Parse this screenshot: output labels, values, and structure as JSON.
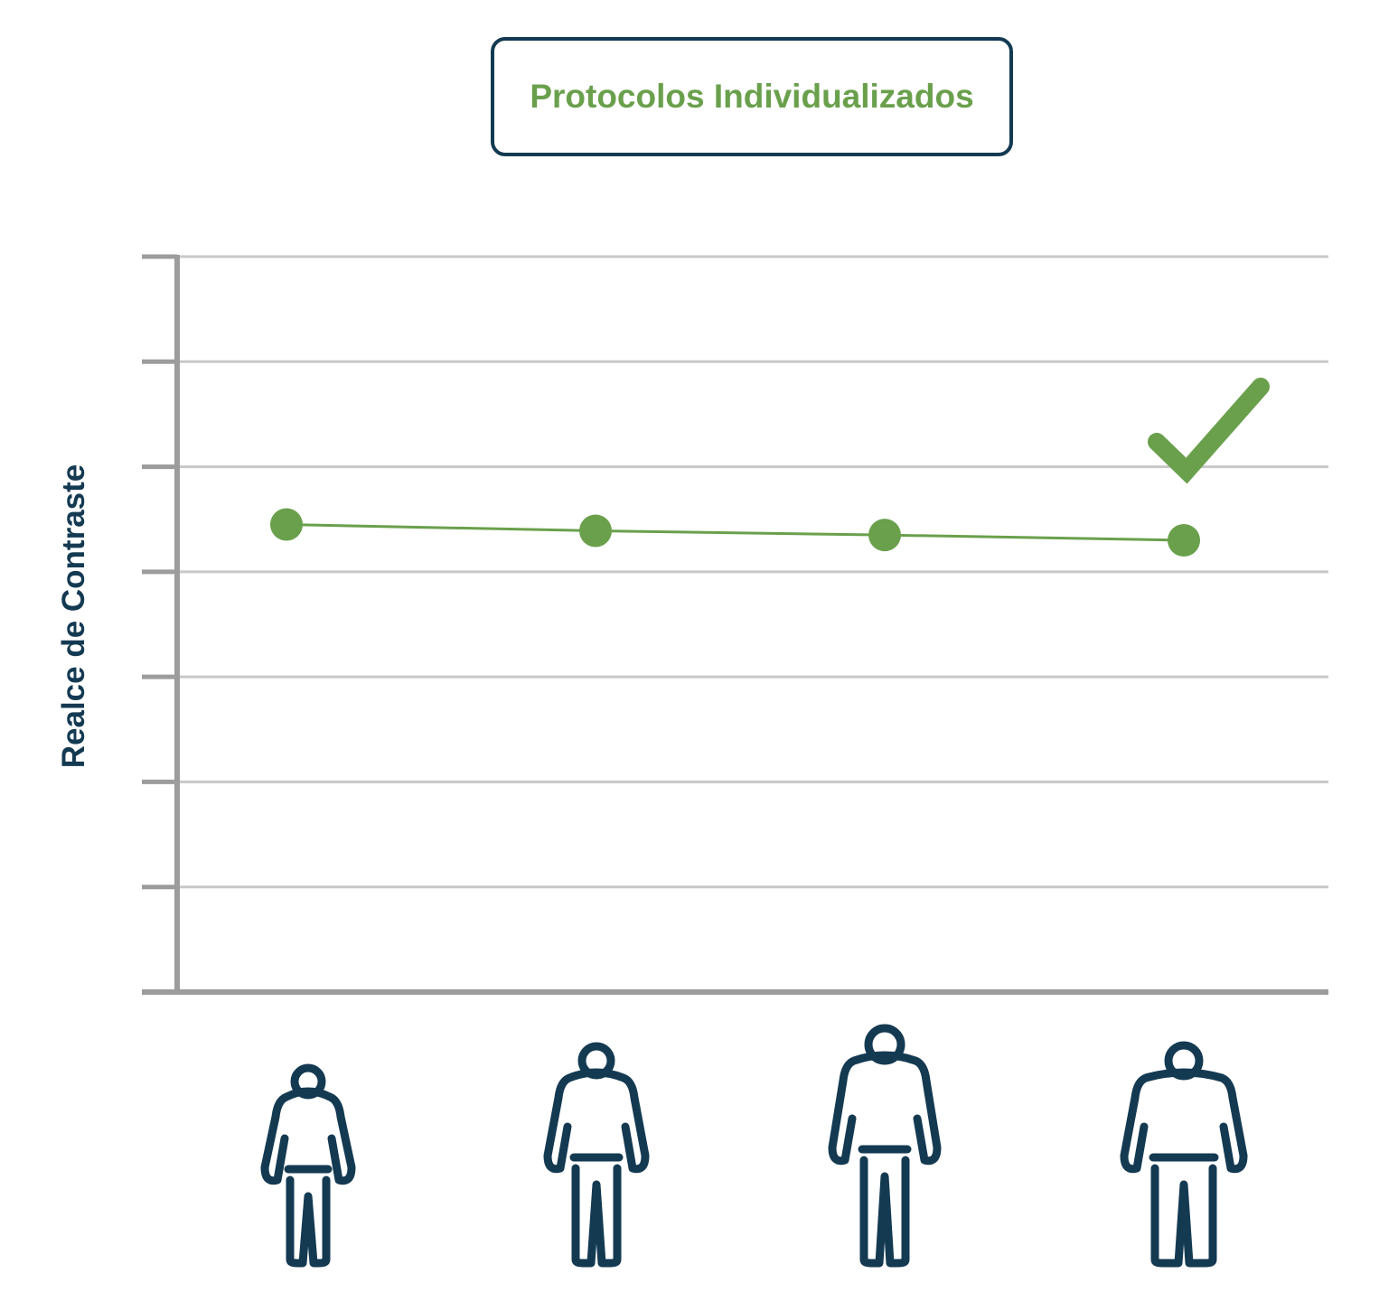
{
  "colors": {
    "accent": "#6aa04c",
    "dark": "#143a52",
    "grid": "#c8c8c8",
    "axis": "#9c9c9c"
  },
  "chart_data": {
    "type": "line",
    "legend": "Protocolos Individualizados",
    "legend_position": "top-center",
    "ylabel": "Realce de Contraste",
    "xlabel": "",
    "grid": true,
    "ylim": [
      0,
      7
    ],
    "categories": [
      "patient-small",
      "patient-medium",
      "patient-tall",
      "patient-large"
    ],
    "x_icons": [
      "person-icon",
      "person-icon",
      "person-icon",
      "person-icon"
    ],
    "series": [
      {
        "name": "Protocolos Individualizados",
        "values": [
          4.45,
          4.39,
          4.35,
          4.3
        ]
      }
    ],
    "annotation": {
      "icon": "checkmark-icon"
    }
  }
}
